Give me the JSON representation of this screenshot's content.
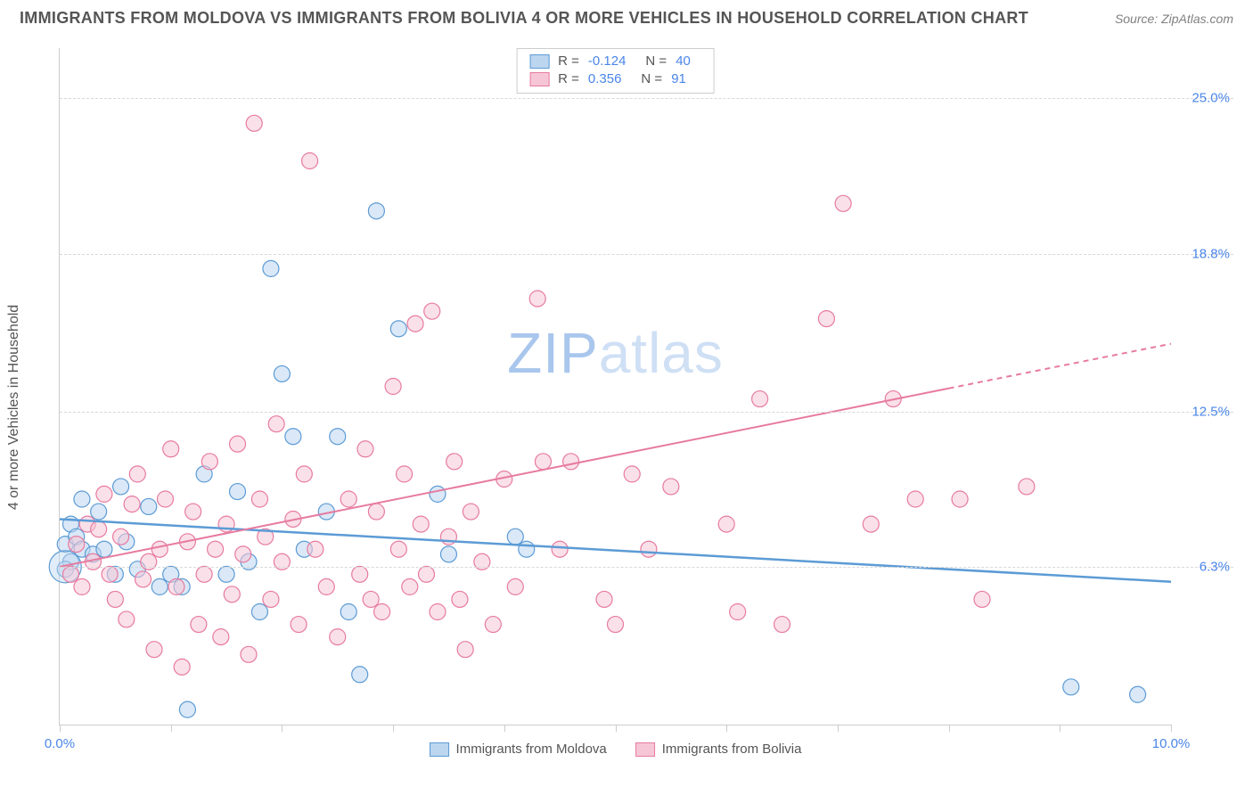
{
  "header": {
    "title": "IMMIGRANTS FROM MOLDOVA VS IMMIGRANTS FROM BOLIVIA 4 OR MORE VEHICLES IN HOUSEHOLD CORRELATION CHART",
    "source": "Source: ZipAtlas.com"
  },
  "y_axis": {
    "label": "4 or more Vehicles in Household"
  },
  "watermark": {
    "prefix": "ZIP",
    "suffix": "atlas"
  },
  "chart": {
    "type": "scatter",
    "xlim": [
      0,
      10
    ],
    "ylim": [
      0,
      27
    ],
    "x_ticks": [
      0,
      1,
      2,
      3,
      4,
      5,
      6,
      7,
      8,
      9,
      10
    ],
    "x_tick_labels": {
      "0": "0.0%",
      "10": "10.0%"
    },
    "y_gridlines": [
      6.3,
      12.5,
      18.8,
      25.0
    ],
    "y_tick_labels": [
      "6.3%",
      "12.5%",
      "18.8%",
      "25.0%"
    ],
    "background_color": "#ffffff",
    "grid_color": "#d8d8d8",
    "axis_color": "#cccccc",
    "tick_label_color": "#4a86e8",
    "marker_radius": 9,
    "marker_opacity": 0.55,
    "line_width": 2,
    "series": [
      {
        "name": "Immigrants from Moldova",
        "color_stroke": "#5c9bd5",
        "color_fill": "#bcd6f0",
        "R": "-0.124",
        "N": "40",
        "trend": {
          "x1": 0,
          "y1": 8.2,
          "x2": 10,
          "y2": 5.7,
          "dash_from_x": null
        },
        "points": [
          [
            0.05,
            7.2
          ],
          [
            0.1,
            8.0
          ],
          [
            0.1,
            6.5
          ],
          [
            0.15,
            7.5
          ],
          [
            0.2,
            7.0
          ],
          [
            0.2,
            9.0
          ],
          [
            0.3,
            6.8
          ],
          [
            0.35,
            8.5
          ],
          [
            0.4,
            7.0
          ],
          [
            0.5,
            6.0
          ],
          [
            0.55,
            9.5
          ],
          [
            0.6,
            7.3
          ],
          [
            0.7,
            6.2
          ],
          [
            0.8,
            8.7
          ],
          [
            0.9,
            5.5
          ],
          [
            1.0,
            6.0
          ],
          [
            1.1,
            5.5
          ],
          [
            1.15,
            0.6
          ],
          [
            1.3,
            10.0
          ],
          [
            1.5,
            6.0
          ],
          [
            1.6,
            9.3
          ],
          [
            1.7,
            6.5
          ],
          [
            1.8,
            4.5
          ],
          [
            1.9,
            18.2
          ],
          [
            2.0,
            14.0
          ],
          [
            2.1,
            11.5
          ],
          [
            2.2,
            7.0
          ],
          [
            2.4,
            8.5
          ],
          [
            2.5,
            11.5
          ],
          [
            2.6,
            4.5
          ],
          [
            2.7,
            2.0
          ],
          [
            2.85,
            20.5
          ],
          [
            3.05,
            15.8
          ],
          [
            3.4,
            9.2
          ],
          [
            3.5,
            6.8
          ],
          [
            4.1,
            7.5
          ],
          [
            4.2,
            7.0
          ],
          [
            9.1,
            1.5
          ],
          [
            9.7,
            1.2
          ],
          [
            0.05,
            6.2
          ]
        ],
        "large_point": {
          "x": 0.05,
          "y": 6.3,
          "r": 18
        }
      },
      {
        "name": "Immigrants from Bolivia",
        "color_stroke": "#e77ba0",
        "color_fill": "#f6c6d7",
        "R": "0.356",
        "N": "91",
        "trend": {
          "x1": 0,
          "y1": 6.3,
          "x2": 10,
          "y2": 15.2,
          "dash_from_x": 8.0
        },
        "points": [
          [
            0.1,
            6.0
          ],
          [
            0.15,
            7.2
          ],
          [
            0.2,
            5.5
          ],
          [
            0.25,
            8.0
          ],
          [
            0.3,
            6.5
          ],
          [
            0.35,
            7.8
          ],
          [
            0.4,
            9.2
          ],
          [
            0.45,
            6.0
          ],
          [
            0.5,
            5.0
          ],
          [
            0.55,
            7.5
          ],
          [
            0.6,
            4.2
          ],
          [
            0.65,
            8.8
          ],
          [
            0.7,
            10.0
          ],
          [
            0.75,
            5.8
          ],
          [
            0.8,
            6.5
          ],
          [
            0.85,
            3.0
          ],
          [
            0.9,
            7.0
          ],
          [
            0.95,
            9.0
          ],
          [
            1.0,
            11.0
          ],
          [
            1.05,
            5.5
          ],
          [
            1.1,
            2.3
          ],
          [
            1.15,
            7.3
          ],
          [
            1.2,
            8.5
          ],
          [
            1.25,
            4.0
          ],
          [
            1.3,
            6.0
          ],
          [
            1.35,
            10.5
          ],
          [
            1.4,
            7.0
          ],
          [
            1.45,
            3.5
          ],
          [
            1.5,
            8.0
          ],
          [
            1.55,
            5.2
          ],
          [
            1.6,
            11.2
          ],
          [
            1.65,
            6.8
          ],
          [
            1.7,
            2.8
          ],
          [
            1.75,
            24.0
          ],
          [
            1.8,
            9.0
          ],
          [
            1.85,
            7.5
          ],
          [
            1.9,
            5.0
          ],
          [
            1.95,
            12.0
          ],
          [
            2.0,
            6.5
          ],
          [
            2.1,
            8.2
          ],
          [
            2.15,
            4.0
          ],
          [
            2.2,
            10.0
          ],
          [
            2.25,
            22.5
          ],
          [
            2.3,
            7.0
          ],
          [
            2.4,
            5.5
          ],
          [
            2.5,
            3.5
          ],
          [
            2.6,
            9.0
          ],
          [
            2.7,
            6.0
          ],
          [
            2.75,
            11.0
          ],
          [
            2.8,
            5.0
          ],
          [
            2.85,
            8.5
          ],
          [
            2.9,
            4.5
          ],
          [
            3.0,
            13.5
          ],
          [
            3.05,
            7.0
          ],
          [
            3.1,
            10.0
          ],
          [
            3.15,
            5.5
          ],
          [
            3.2,
            16.0
          ],
          [
            3.25,
            8.0
          ],
          [
            3.3,
            6.0
          ],
          [
            3.35,
            16.5
          ],
          [
            3.4,
            4.5
          ],
          [
            3.5,
            7.5
          ],
          [
            3.55,
            10.5
          ],
          [
            3.6,
            5.0
          ],
          [
            3.65,
            3.0
          ],
          [
            3.7,
            8.5
          ],
          [
            3.8,
            6.5
          ],
          [
            3.9,
            4.0
          ],
          [
            4.0,
            9.8
          ],
          [
            4.1,
            5.5
          ],
          [
            4.3,
            17.0
          ],
          [
            4.35,
            10.5
          ],
          [
            4.5,
            7.0
          ],
          [
            4.6,
            10.5
          ],
          [
            4.9,
            5.0
          ],
          [
            5.0,
            4.0
          ],
          [
            5.15,
            10.0
          ],
          [
            5.3,
            7.0
          ],
          [
            5.5,
            9.5
          ],
          [
            6.0,
            8.0
          ],
          [
            6.1,
            4.5
          ],
          [
            6.3,
            13.0
          ],
          [
            6.5,
            4.0
          ],
          [
            6.9,
            16.2
          ],
          [
            7.05,
            20.8
          ],
          [
            7.3,
            8.0
          ],
          [
            7.5,
            13.0
          ],
          [
            7.7,
            9.0
          ],
          [
            8.1,
            9.0
          ],
          [
            8.3,
            5.0
          ],
          [
            8.7,
            9.5
          ]
        ]
      }
    ]
  },
  "legend": {
    "r_label": "R =",
    "n_label": "N ="
  },
  "bottom_legend": {
    "items": [
      "Immigrants from Moldova",
      "Immigrants from Bolivia"
    ]
  }
}
